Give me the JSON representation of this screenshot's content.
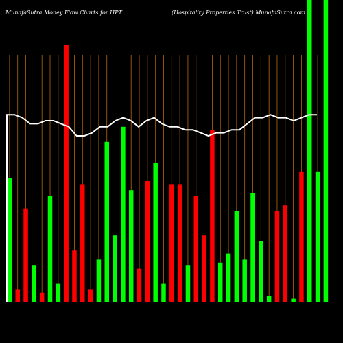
{
  "header": {
    "left": "MunafaSutra  Money Flow  Charts for HPT",
    "right": "(Hospitality Properties Trust) MunafaSutra.com"
  },
  "colors": {
    "background": "#000000",
    "grid": "#b8660b",
    "up": "#00ff00",
    "down": "#ff0000",
    "line": "#ffffff"
  },
  "chart_data": {
    "type": "bar",
    "ylim": [
      0,
      100
    ],
    "grid": true,
    "bars": [
      {
        "value": 41,
        "color": "up"
      },
      {
        "value": 4,
        "color": "down"
      },
      {
        "value": 31,
        "color": "down"
      },
      {
        "value": 12,
        "color": "up"
      },
      {
        "value": 3,
        "color": "down"
      },
      {
        "value": 35,
        "color": "up"
      },
      {
        "value": 6,
        "color": "up"
      },
      {
        "value": 85,
        "color": "down"
      },
      {
        "value": 17,
        "color": "down"
      },
      {
        "value": 39,
        "color": "down"
      },
      {
        "value": 4,
        "color": "down"
      },
      {
        "value": 14,
        "color": "up"
      },
      {
        "value": 53,
        "color": "up"
      },
      {
        "value": 22,
        "color": "up"
      },
      {
        "value": 58,
        "color": "up"
      },
      {
        "value": 37,
        "color": "up"
      },
      {
        "value": 11,
        "color": "down"
      },
      {
        "value": 40,
        "color": "down"
      },
      {
        "value": 46,
        "color": "up"
      },
      {
        "value": 6,
        "color": "up"
      },
      {
        "value": 39,
        "color": "down"
      },
      {
        "value": 39,
        "color": "down"
      },
      {
        "value": 12,
        "color": "up"
      },
      {
        "value": 35,
        "color": "down"
      },
      {
        "value": 22,
        "color": "down"
      },
      {
        "value": 57,
        "color": "down"
      },
      {
        "value": 13,
        "color": "up"
      },
      {
        "value": 16,
        "color": "up"
      },
      {
        "value": 30,
        "color": "up"
      },
      {
        "value": 14,
        "color": "up"
      },
      {
        "value": 36,
        "color": "up"
      },
      {
        "value": 20,
        "color": "up"
      },
      {
        "value": 2,
        "color": "up"
      },
      {
        "value": 30,
        "color": "down"
      },
      {
        "value": 32,
        "color": "down"
      },
      {
        "value": 1,
        "color": "up"
      },
      {
        "value": 43,
        "color": "down"
      },
      {
        "value": 100,
        "color": "up"
      },
      {
        "value": 43,
        "color": "up"
      },
      {
        "value": 100,
        "color": "up"
      }
    ],
    "line": [
      62,
      62,
      61,
      59,
      59,
      60,
      60,
      59,
      58,
      55,
      55,
      56,
      58,
      58,
      60,
      61,
      60,
      58,
      60,
      61,
      59,
      58,
      58,
      57,
      57,
      56,
      55,
      56,
      56,
      57,
      57,
      59,
      61,
      61,
      62,
      61,
      61,
      60,
      61,
      62,
      62
    ]
  }
}
